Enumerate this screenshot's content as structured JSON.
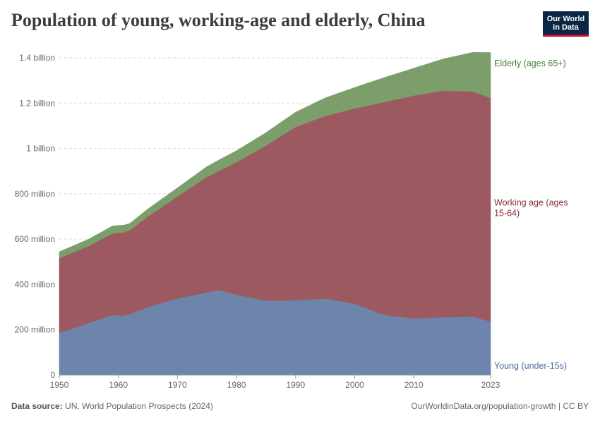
{
  "title": "Population of young, working-age and elderly, China",
  "logo": {
    "line1": "Our World",
    "line2": "in Data"
  },
  "footer": {
    "source_label": "Data source:",
    "source_text": "UN, World Population Prospects (2024)",
    "url_text": "OurWorldinData.org/population-growth | CC BY"
  },
  "chart_data": {
    "type": "area",
    "stacked": true,
    "xlim": [
      1950,
      2023
    ],
    "ylim": [
      0,
      1400000000
    ],
    "grid": true,
    "y_ticks": [
      {
        "value": 0,
        "label": "0"
      },
      {
        "value": 200000000,
        "label": "200 million"
      },
      {
        "value": 400000000,
        "label": "400 million"
      },
      {
        "value": 600000000,
        "label": "600 million"
      },
      {
        "value": 800000000,
        "label": "800 million"
      },
      {
        "value": 1000000000,
        "label": "1 billion"
      },
      {
        "value": 1200000000,
        "label": "1.2 billion"
      },
      {
        "value": 1400000000,
        "label": "1.4 billion"
      }
    ],
    "x_ticks": [
      {
        "value": 1950,
        "label": "1950"
      },
      {
        "value": 1960,
        "label": "1960"
      },
      {
        "value": 1970,
        "label": "1970"
      },
      {
        "value": 1980,
        "label": "1980"
      },
      {
        "value": 1990,
        "label": "1990"
      },
      {
        "value": 2000,
        "label": "2000"
      },
      {
        "value": 2010,
        "label": "2010"
      },
      {
        "value": 2023,
        "label": "2023"
      }
    ],
    "x": [
      1950,
      1955,
      1959,
      1961,
      1962,
      1965,
      1970,
      1975,
      1977,
      1980,
      1985,
      1990,
      1995,
      2000,
      2005,
      2010,
      2015,
      2020,
      2023
    ],
    "series": [
      {
        "name": "Young (under-15s)",
        "color": "#6d85ad",
        "label_color": "#4c6a9c",
        "values": [
          186000000,
          230000000,
          265000000,
          262000000,
          270000000,
          300000000,
          338000000,
          365000000,
          375000000,
          355000000,
          328000000,
          330000000,
          338000000,
          315000000,
          265000000,
          250000000,
          255000000,
          258000000,
          236000000
        ]
      },
      {
        "name": "Working age (ages 15-64)",
        "color": "#9c5a60",
        "label_color": "#883039",
        "values": [
          330000000,
          340000000,
          360000000,
          368000000,
          370000000,
          400000000,
          450000000,
          510000000,
          526000000,
          585000000,
          685000000,
          765000000,
          805000000,
          862000000,
          940000000,
          984000000,
          1000000000,
          994000000,
          987000000
        ]
      },
      {
        "name": "Elderly (ages 65+)",
        "color": "#7c9e6a",
        "label_color": "#4a7c3c",
        "values": [
          28000000,
          30000000,
          33000000,
          32000000,
          30000000,
          33000000,
          38000000,
          45000000,
          48000000,
          50000000,
          57000000,
          65000000,
          80000000,
          92000000,
          108000000,
          120000000,
          140000000,
          172000000,
          200000000
        ]
      }
    ]
  }
}
